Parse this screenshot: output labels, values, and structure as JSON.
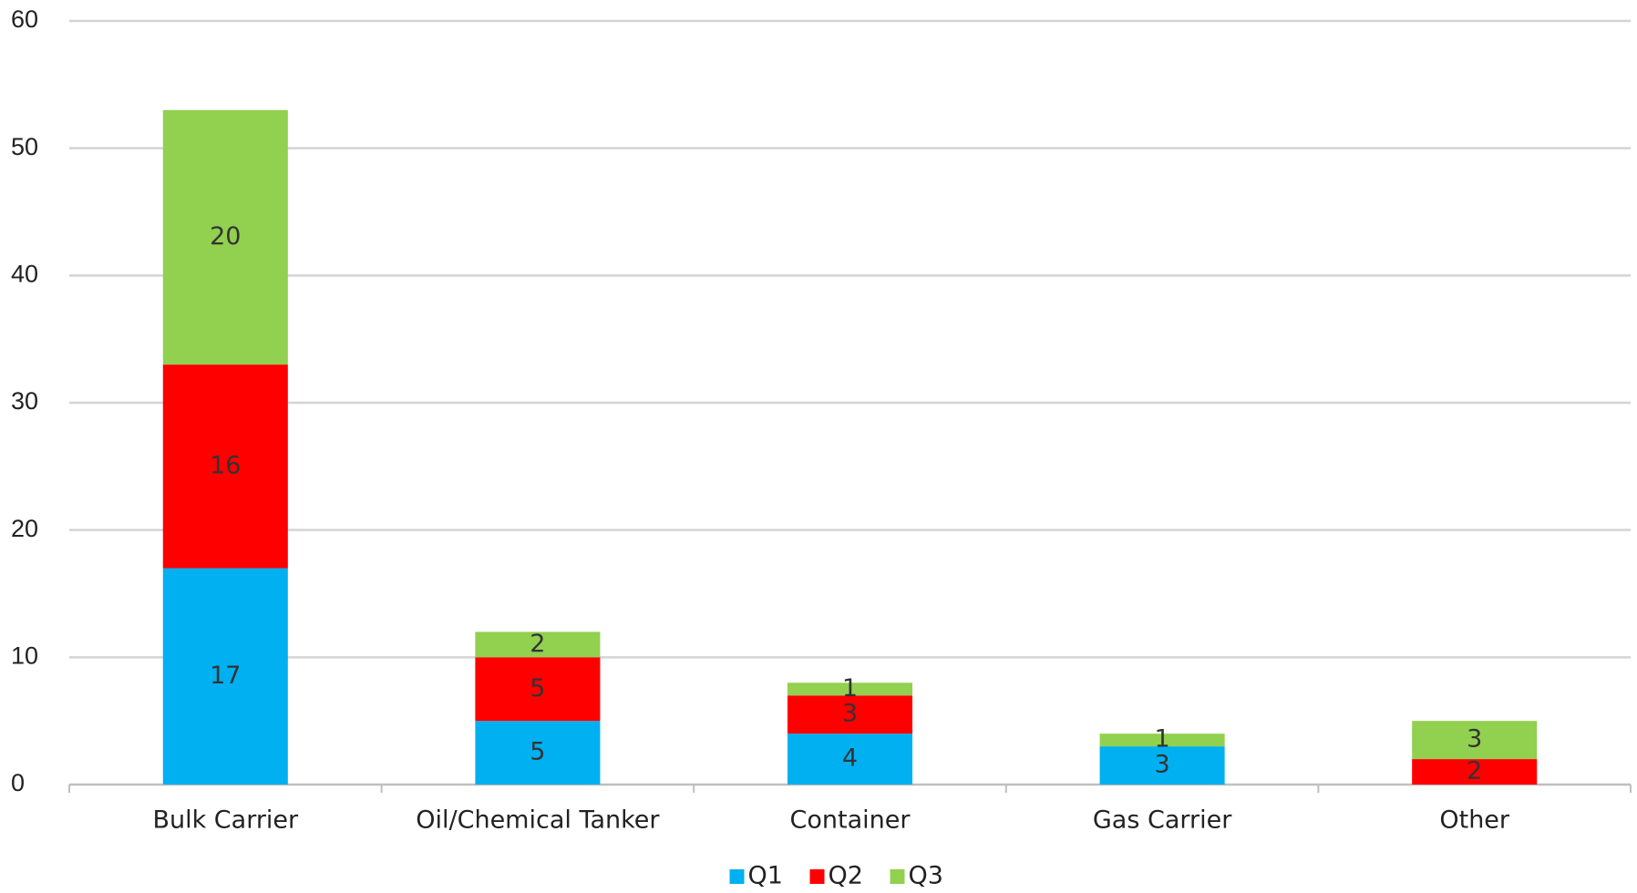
{
  "chart_data": {
    "type": "stacked_bar",
    "categories": [
      "Bulk Carrier",
      "Oil/Chemical Tanker",
      "Container",
      "Gas Carrier",
      "Other"
    ],
    "series": [
      {
        "name": "Q1",
        "color": "#00b0f0",
        "values": [
          17,
          5,
          4,
          3,
          null
        ]
      },
      {
        "name": "Q2",
        "color": "#ff0000",
        "values": [
          16,
          5,
          3,
          null,
          2
        ]
      },
      {
        "name": "Q3",
        "color": "#92d050",
        "values": [
          20,
          2,
          1,
          1,
          3
        ]
      }
    ],
    "ylim": [
      0,
      60
    ],
    "yticks": [
      0,
      10,
      20,
      30,
      40,
      50,
      60
    ],
    "grid": true,
    "legend": "bottom"
  }
}
